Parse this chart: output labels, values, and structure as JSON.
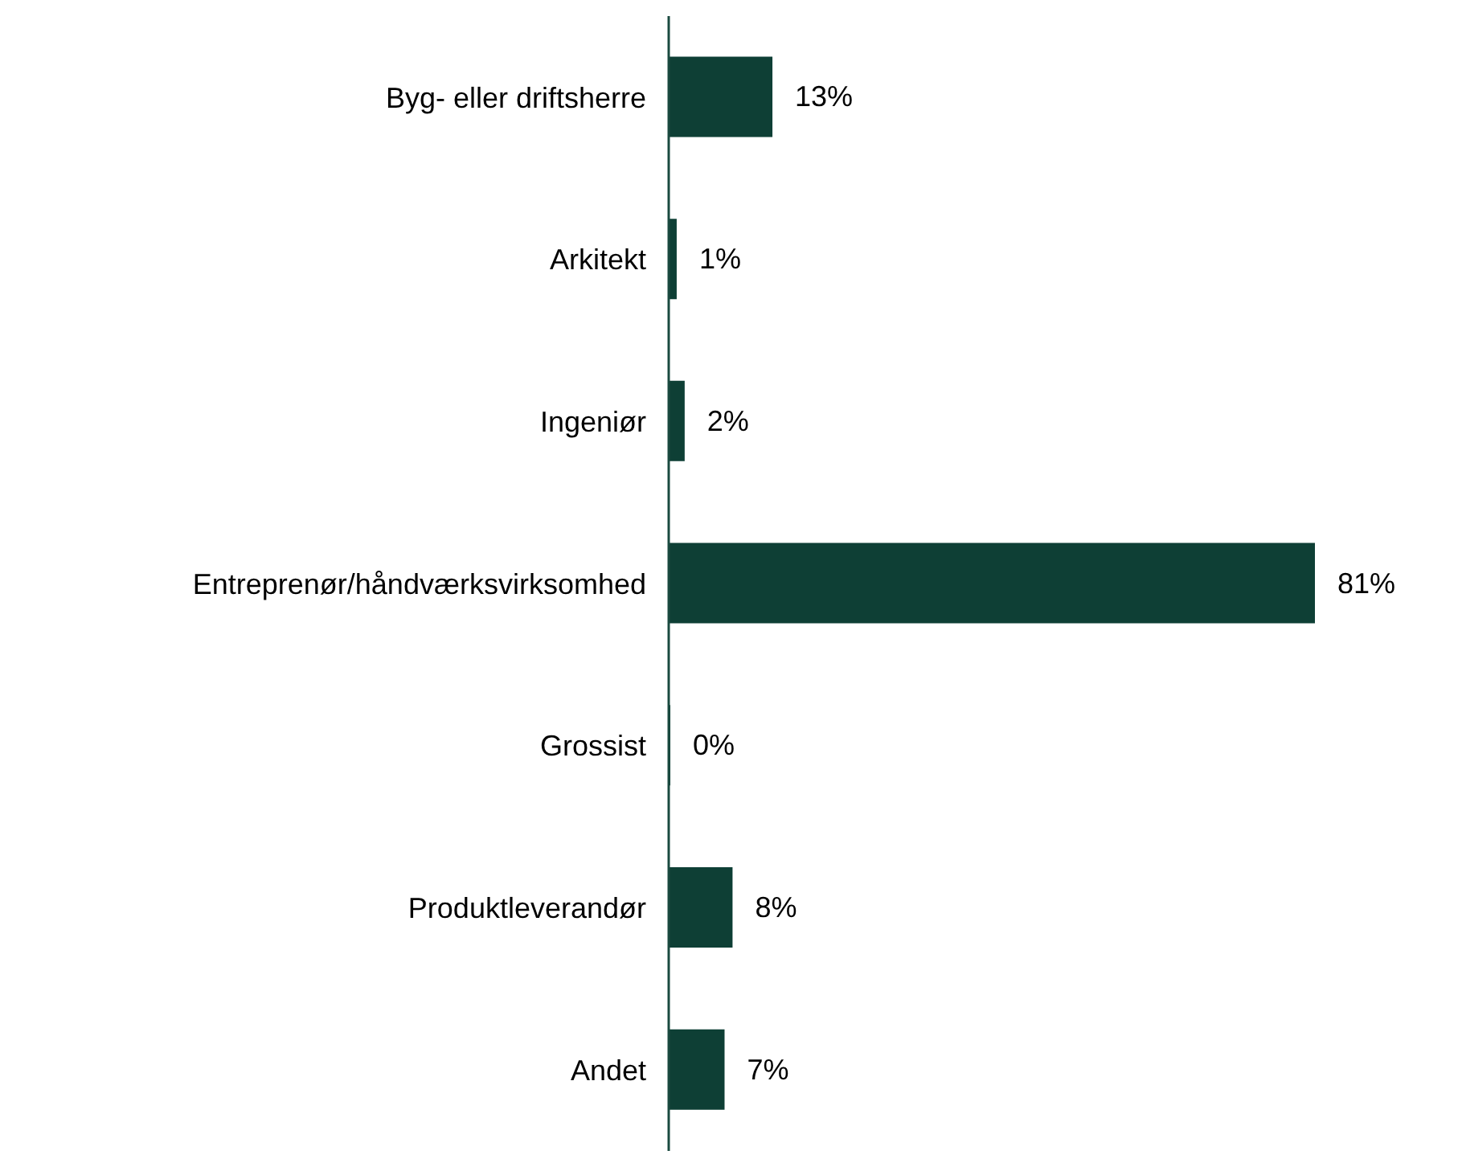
{
  "chart_data": {
    "type": "bar",
    "orientation": "horizontal",
    "categories": [
      "Byg- eller driftsherre",
      "Arkitekt",
      "Ingeniør",
      "Entreprenør/håndværksvirksomhed",
      "Grossist",
      "Produktleverandør",
      "Andet"
    ],
    "values": [
      13,
      1,
      2,
      81,
      0,
      8,
      7
    ],
    "value_labels": [
      "13%",
      "1%",
      "2%",
      "81%",
      "0%",
      "8%",
      "7%"
    ],
    "color": "#0e3f35",
    "xlim": [
      0,
      81
    ],
    "grid": false,
    "legend": false,
    "tick_labels": "y"
  }
}
